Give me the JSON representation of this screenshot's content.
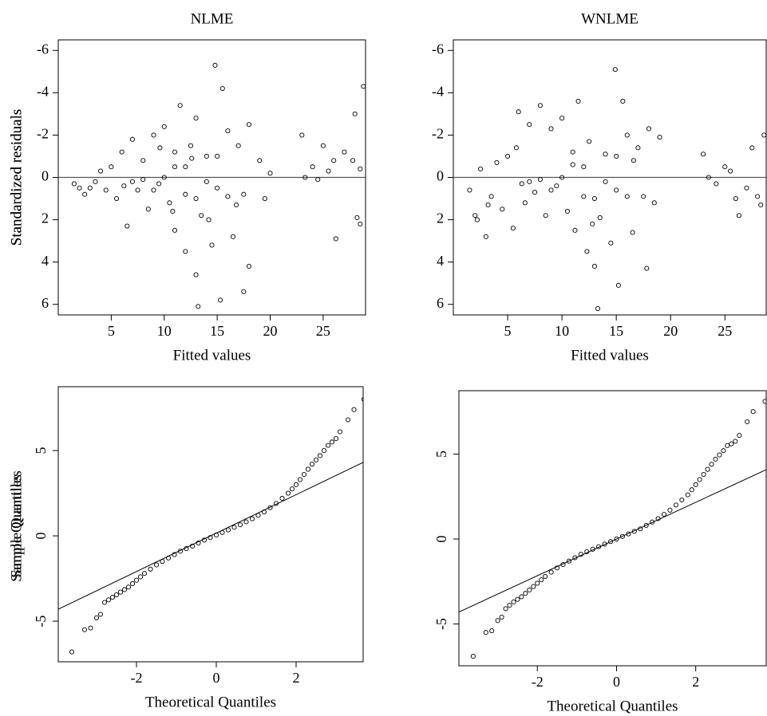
{
  "chart_data": [
    {
      "type": "scatter",
      "title": "NLME",
      "xlabel": "Fitted values",
      "ylabel": "Standardized residuals",
      "xlim": [
        0,
        29
      ],
      "ylim": [
        6.5,
        -6.5
      ],
      "xticks": [
        5,
        10,
        15,
        20,
        25
      ],
      "yticks": [
        -6,
        -4,
        -2,
        0,
        2,
        4,
        6
      ],
      "hline": 0,
      "color": "#000000",
      "x": [
        1.5,
        2,
        2.5,
        3,
        3.5,
        4,
        4.5,
        5,
        5.5,
        6,
        6.2,
        6.5,
        7,
        7.5,
        8,
        8.5,
        9,
        9.5,
        10,
        10.5,
        11,
        11,
        11.5,
        12,
        12,
        12.5,
        13,
        13,
        13.5,
        13.2,
        14,
        14.5,
        14.8,
        15,
        15.3,
        15.5,
        16,
        16.5,
        17,
        17.5,
        17.5,
        18,
        18,
        19,
        19.5,
        20,
        23,
        23.3,
        24,
        24.5,
        25,
        25.5,
        26,
        26.2,
        27,
        28,
        28.2,
        28.5,
        28.8,
        28.5,
        27.8,
        10,
        12,
        14,
        8,
        9,
        11,
        13,
        15,
        16,
        7,
        10.8,
        12.6,
        14.2,
        9.6,
        16.8
      ],
      "y": [
        0.3,
        0.5,
        0.8,
        0.5,
        0.2,
        -0.3,
        0.6,
        -0.5,
        1.0,
        -1.2,
        0.4,
        2.3,
        -1.8,
        0.6,
        -0.8,
        1.5,
        -2.0,
        0.3,
        -2.4,
        1.2,
        -0.5,
        2.5,
        -3.4,
        0.8,
        3.5,
        -1.5,
        4.6,
        -2.8,
        1.8,
        6.1,
        -1.0,
        3.2,
        -5.3,
        0.5,
        5.8,
        -4.2,
        -2.2,
        2.8,
        -1.5,
        0.8,
        5.4,
        -2.5,
        4.2,
        -0.8,
        1.0,
        -0.2,
        -2.0,
        0.0,
        -0.5,
        0.1,
        -1.5,
        -0.3,
        -0.8,
        2.9,
        -1.2,
        -3.0,
        1.9,
        -0.4,
        -4.3,
        2.2,
        -0.8,
        0.0,
        -0.5,
        0.2,
        0.1,
        0.6,
        -1.2,
        1.0,
        -1.0,
        0.9,
        0.2,
        1.6,
        -0.9,
        2.0,
        -1.4,
        1.3
      ]
    },
    {
      "type": "scatter",
      "title": "WNLME",
      "xlabel": "Fitted values",
      "ylabel": "Standardized residuals",
      "xlim": [
        0,
        28.8
      ],
      "ylim": [
        6.5,
        -6.5
      ],
      "xticks": [
        5,
        10,
        15,
        20,
        25
      ],
      "yticks": [
        -6,
        -4,
        -2,
        0,
        2,
        4,
        6
      ],
      "hline": 0,
      "color": "#000000",
      "x": [
        1.5,
        2,
        2.5,
        3,
        3.5,
        4,
        4.5,
        5,
        5.5,
        6,
        6.3,
        6.6,
        7,
        7.5,
        8,
        8.5,
        9,
        9.5,
        10,
        10.5,
        11,
        11.2,
        11.5,
        12,
        12.3,
        12.5,
        13,
        13.3,
        13.5,
        14,
        14.5,
        14.9,
        15,
        15.2,
        15.6,
        16,
        16.5,
        17,
        17.5,
        17.8,
        18,
        18.5,
        19,
        23,
        23.5,
        24.2,
        25,
        25.5,
        26,
        26.3,
        27,
        27.5,
        28,
        28.3,
        28.6,
        10,
        12,
        14,
        8,
        9,
        11,
        13,
        15,
        16,
        7,
        2.2,
        3.2,
        5.8,
        12.8,
        16.6
      ],
      "y": [
        0.6,
        1.8,
        -0.4,
        2.8,
        0.9,
        -0.7,
        1.5,
        -1.0,
        2.4,
        -3.1,
        0.3,
        1.2,
        -2.5,
        0.7,
        -3.4,
        1.8,
        -2.3,
        0.4,
        -2.8,
        1.6,
        -0.6,
        2.5,
        -3.6,
        0.9,
        3.5,
        -1.7,
        4.2,
        6.2,
        1.9,
        -1.1,
        3.1,
        -5.1,
        0.6,
        5.1,
        -3.6,
        -2.0,
        2.6,
        -1.4,
        0.9,
        4.3,
        -2.3,
        1.2,
        -1.9,
        -1.1,
        0.0,
        0.3,
        -0.5,
        -0.3,
        1.0,
        1.8,
        0.5,
        -1.4,
        0.9,
        1.3,
        -2.0,
        0.0,
        -0.5,
        0.2,
        0.1,
        0.6,
        -1.2,
        1.0,
        -1.0,
        0.9,
        0.2,
        2.0,
        1.3,
        -1.4,
        2.2,
        -0.8
      ]
    },
    {
      "type": "qq",
      "xlabel": "Theoretical Quantiles",
      "ylabel": "Sample Quantiles",
      "xlim": [
        -3.96,
        3.68
      ],
      "ylim": [
        -7.38,
        8.74
      ],
      "xticks": [
        -2,
        0,
        2
      ],
      "yticks": [
        -5,
        0,
        5
      ],
      "ref_line": {
        "intercept": 0.16,
        "slope": 1.126
      },
      "color": "#000000",
      "x": [
        -3.62,
        -3.3,
        -3.15,
        -3.0,
        -2.9,
        -2.8,
        -2.7,
        -2.6,
        -2.5,
        -2.4,
        -2.3,
        -2.2,
        -2.1,
        -2.0,
        -1.9,
        -1.8,
        -1.65,
        -1.5,
        -1.35,
        -1.2,
        -1.05,
        -0.9,
        -0.75,
        -0.6,
        -0.45,
        -0.3,
        -0.15,
        0,
        0.15,
        0.3,
        0.45,
        0.6,
        0.75,
        0.9,
        1.05,
        1.2,
        1.35,
        1.5,
        1.65,
        1.8,
        1.9,
        2.0,
        2.1,
        2.2,
        2.3,
        2.4,
        2.5,
        2.6,
        2.7,
        2.8,
        2.9,
        3.0,
        3.1,
        3.3,
        3.45,
        3.7
      ],
      "y": [
        -6.8,
        -5.5,
        -5.4,
        -4.8,
        -4.6,
        -3.9,
        -3.75,
        -3.6,
        -3.45,
        -3.3,
        -3.15,
        -3.0,
        -2.8,
        -2.6,
        -2.4,
        -2.2,
        -1.95,
        -1.7,
        -1.5,
        -1.3,
        -1.1,
        -0.9,
        -0.75,
        -0.6,
        -0.42,
        -0.25,
        -0.1,
        0.05,
        0.2,
        0.35,
        0.5,
        0.65,
        0.82,
        1.0,
        1.2,
        1.4,
        1.65,
        1.9,
        2.2,
        2.5,
        2.75,
        3.0,
        3.3,
        3.6,
        3.9,
        4.2,
        4.45,
        4.7,
        5.0,
        5.3,
        5.5,
        5.7,
        6.1,
        6.8,
        7.4,
        8.0
      ]
    },
    {
      "type": "qq",
      "xlabel": "Theoretical Quantiles",
      "ylabel": "Sample Quantiles",
      "xlim": [
        -3.98,
        3.78
      ],
      "ylim": [
        -7.46,
        8.73
      ],
      "xticks": [
        -2,
        0,
        2
      ],
      "yticks": [
        -5,
        0,
        5
      ],
      "ref_line": {
        "intercept": 0.0,
        "slope": 1.08
      },
      "color": "#000000",
      "x": [
        -3.62,
        -3.3,
        -3.15,
        -3.0,
        -2.9,
        -2.8,
        -2.7,
        -2.6,
        -2.5,
        -2.4,
        -2.3,
        -2.2,
        -2.1,
        -2.0,
        -1.9,
        -1.8,
        -1.65,
        -1.5,
        -1.35,
        -1.2,
        -1.05,
        -0.9,
        -0.75,
        -0.6,
        -0.45,
        -0.3,
        -0.15,
        0,
        0.15,
        0.3,
        0.45,
        0.6,
        0.75,
        0.9,
        1.05,
        1.2,
        1.35,
        1.5,
        1.65,
        1.8,
        1.9,
        2.0,
        2.1,
        2.2,
        2.3,
        2.4,
        2.5,
        2.6,
        2.7,
        2.8,
        2.9,
        3.0,
        3.1,
        3.3,
        3.45,
        3.75
      ],
      "y": [
        -6.9,
        -5.5,
        -5.4,
        -4.8,
        -4.6,
        -4.1,
        -3.9,
        -3.7,
        -3.55,
        -3.4,
        -3.2,
        -3.0,
        -2.8,
        -2.6,
        -2.4,
        -2.2,
        -1.95,
        -1.7,
        -1.5,
        -1.3,
        -1.1,
        -0.9,
        -0.75,
        -0.6,
        -0.45,
        -0.3,
        -0.15,
        0.0,
        0.15,
        0.3,
        0.45,
        0.6,
        0.8,
        1.0,
        1.2,
        1.45,
        1.7,
        2.0,
        2.3,
        2.6,
        2.9,
        3.2,
        3.5,
        3.8,
        4.1,
        4.4,
        4.7,
        4.95,
        5.2,
        5.5,
        5.6,
        5.75,
        6.1,
        6.9,
        7.5,
        8.1
      ]
    }
  ]
}
